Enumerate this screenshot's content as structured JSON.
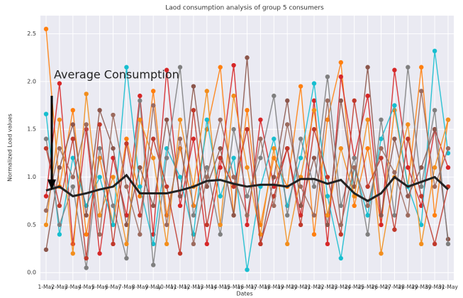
{
  "chart_data": {
    "type": "line",
    "title": "Laod consumption analysis of group 5 consumers",
    "x_label": "Dates",
    "y_label": "Normalized Load values",
    "annotation": "Average Consumption",
    "categories": [
      "1-May",
      "2-May",
      "3-May",
      "4-May",
      "5-May",
      "6-May",
      "7-May",
      "8-May",
      "9-May",
      "10-May",
      "11-May",
      "12-May",
      "13-May",
      "14-May",
      "15-May",
      "16-May",
      "17-May",
      "18-May",
      "19-May",
      "20-May",
      "21-May",
      "22-May",
      "23-May",
      "24-May",
      "25-May",
      "26-May",
      "27-May",
      "28-May",
      "29-May",
      "30-May",
      "31-May"
    ],
    "ylim": [
      -0.08,
      2.69
    ],
    "yticks": [
      {
        "value": 0,
        "label": "0.0"
      },
      0.5,
      {
        "value": 1,
        "label": "1.0"
      },
      1.5,
      {
        "value": 2,
        "label": "2.0"
      },
      2.5
    ],
    "grid": true,
    "series": [
      {
        "color": "#ff7f0e",
        "values": [
          2.55,
          0.9,
          1.7,
          0.4,
          1.2,
          0.5,
          1.4,
          0.8,
          1.9,
          0.6,
          1.3,
          0.7,
          1.5,
          2.15,
          0.6,
          1.7,
          0.5,
          1.2,
          0.9,
          1.95,
          0.4,
          1.6,
          2.2,
          0.7,
          1.3,
          0.5,
          1.7,
          0.9,
          2.15,
          0.6,
          1.6
        ]
      },
      {
        "color": "#d62728",
        "values": [
          0.8,
          1.98,
          0.3,
          1.5,
          0.2,
          1.2,
          0.6,
          1.85,
          0.4,
          2.12,
          0.7,
          1.4,
          0.3,
          1.1,
          2.17,
          0.5,
          1.6,
          0.9,
          1.3,
          0.6,
          1.8,
          0.3,
          2.05,
          1.2,
          1.85,
          0.5,
          2.12,
          1.1,
          0.7,
          1.5,
          1.1
        ]
      },
      {
        "color": "#17becf",
        "values": [
          1.66,
          0.4,
          1.2,
          0.7,
          1.0,
          0.5,
          2.15,
          0.9,
          0.3,
          1.3,
          1.0,
          0.4,
          1.6,
          0.8,
          1.2,
          0.03,
          0.9,
          1.4,
          0.7,
          1.2,
          1.98,
          0.8,
          0.15,
          1.1,
          0.6,
          1.4,
          1.75,
          0.9,
          0.5,
          2.32,
          1.25
        ]
      },
      {
        "color": "#8c564b",
        "values": [
          0.24,
          1.1,
          1.55,
          0.6,
          1.7,
          1.3,
          0.5,
          1.1,
          0.7,
          1.6,
          0.8,
          1.95,
          0.9,
          1.3,
          0.6,
          2.25,
          0.3,
          1.0,
          1.8,
          0.7,
          1.2,
          0.5,
          1.8,
          0.9,
          2.15,
          0.6,
          1.4,
          0.8,
          1.1,
          1.5,
          0.35
        ]
      },
      {
        "color": "#7f7f7f",
        "values": [
          1.4,
          0.5,
          0.9,
          0.05,
          1.3,
          0.7,
          0.15,
          1.8,
          0.08,
          1.2,
          2.15,
          0.6,
          1.1,
          0.4,
          1.5,
          0.8,
          1.2,
          1.85,
          0.6,
          1.4,
          0.9,
          2.05,
          0.7,
          1.2,
          0.4,
          1.6,
          0.6,
          2.15,
          0.9,
          1.7,
          0.3
        ]
      },
      {
        "color": "#f28e1c",
        "values": [
          0.5,
          1.6,
          0.2,
          1.87,
          0.6,
          1.0,
          0.3,
          1.6,
          1.2,
          0.3,
          1.6,
          0.9,
          1.9,
          0.5,
          1.85,
          1.1,
          0.4,
          1.3,
          0.3,
          1.0,
          1.7,
          0.6,
          1.3,
          0.8,
          1.6,
          0.2,
          1.0,
          1.55,
          0.3,
          1.1,
          1.6
        ]
      },
      {
        "color": "#c0392b",
        "values": [
          1.3,
          0.7,
          1.4,
          0.15,
          1.55,
          0.3,
          1.35,
          0.6,
          1.4,
          0.9,
          0.2,
          1.7,
          0.5,
          1.2,
          0.9,
          1.5,
          0.3,
          0.8,
          1.3,
          0.5,
          1.5,
          1.0,
          0.4,
          1.8,
          0.9,
          1.2,
          0.45,
          1.4,
          0.8,
          0.3,
          0.9
        ]
      },
      {
        "color": "#9c6b5e",
        "values": [
          0.65,
          1.3,
          1.0,
          1.55,
          0.4,
          1.65,
          0.9,
          0.4,
          1.75,
          0.5,
          1.4,
          0.3,
          1.0,
          1.6,
          1.0,
          0.6,
          1.4,
          0.7,
          1.55,
          0.9,
          0.6,
          1.8,
          0.5,
          1.1,
          0.7,
          1.3,
          1.05,
          0.6,
          1.9,
          0.9,
          1.3
        ]
      },
      {
        "color": "#222222",
        "values": [
          0.86,
          0.9,
          0.8,
          0.83,
          0.87,
          0.9,
          1.02,
          0.83,
          0.83,
          0.83,
          0.86,
          0.9,
          0.96,
          0.97,
          0.93,
          0.9,
          0.92,
          0.92,
          0.9,
          0.98,
          0.98,
          0.93,
          0.97,
          0.83,
          0.75,
          0.83,
          1.0,
          0.9,
          0.95,
          1.0,
          0.87
        ]
      }
    ]
  }
}
